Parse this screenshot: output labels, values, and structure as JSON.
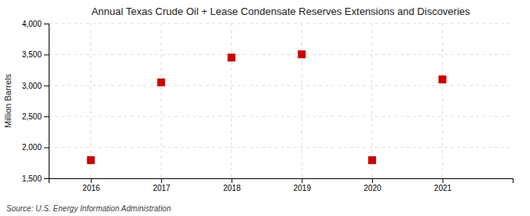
{
  "chart_data": {
    "type": "scatter",
    "title": "Annual Texas Crude Oil + Lease Condensate Reserves Extensions and Discoveries",
    "ylabel": "Million Barrels",
    "source": "Source: U.S. Energy Information Administration",
    "x": [
      2016,
      2017,
      2018,
      2019,
      2020,
      2021
    ],
    "values": [
      1793,
      3050,
      3450,
      3503,
      1793,
      3097
    ],
    "color": "#cc0000",
    "marker": "square",
    "xlim": [
      2015.4,
      2022.0
    ],
    "xticks": [
      2016,
      2017,
      2018,
      2019,
      2020,
      2021
    ],
    "ylim": [
      1500,
      4000
    ],
    "yticks": [
      {
        "value": 1500,
        "label": "1,500"
      },
      {
        "value": 2000,
        "label": "2,000"
      },
      {
        "value": 2500,
        "label": "2,500"
      },
      {
        "value": 3000,
        "label": "3,000"
      },
      {
        "value": 3500,
        "label": "3,500"
      },
      {
        "value": 4000,
        "label": "4,000"
      }
    ],
    "grid": true
  }
}
